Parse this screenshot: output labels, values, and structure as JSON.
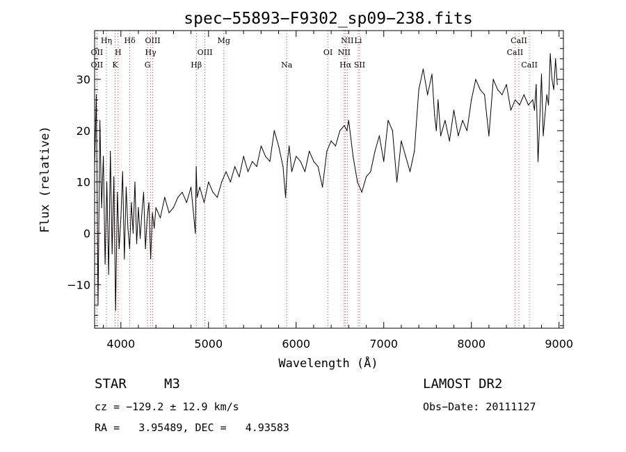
{
  "chart_data": {
    "type": "line",
    "title": "spec−55893−F9302_sp09−238.fits",
    "xlabel": "Wavelength (Å)",
    "ylabel": "Flux (relative)",
    "xlim": [
      3700,
      9050
    ],
    "ylim": [
      -18.5,
      39.5
    ],
    "x_ticks": [
      4000,
      5000,
      6000,
      7000,
      8000,
      9000
    ],
    "y_ticks": [
      -10,
      0,
      10,
      20,
      30
    ],
    "x_tick_labels": [
      "4000",
      "5000",
      "6000",
      "7000",
      "8000",
      "9000"
    ],
    "y_tick_labels": [
      "−10",
      "0",
      "10",
      "20",
      "30"
    ],
    "series": [
      {
        "name": "flux",
        "x": [
          3700,
          3720,
          3740,
          3760,
          3780,
          3800,
          3820,
          3840,
          3860,
          3880,
          3900,
          3920,
          3940,
          3960,
          3980,
          4000,
          4020,
          4040,
          4060,
          4080,
          4100,
          4120,
          4140,
          4160,
          4180,
          4200,
          4220,
          4240,
          4260,
          4280,
          4300,
          4320,
          4340,
          4360,
          4380,
          4400,
          4450,
          4500,
          4550,
          4600,
          4650,
          4700,
          4750,
          4800,
          4850,
          4860,
          4870,
          4900,
          4950,
          5000,
          5050,
          5100,
          5150,
          5200,
          5250,
          5300,
          5350,
          5400,
          5450,
          5500,
          5550,
          5600,
          5650,
          5700,
          5750,
          5800,
          5850,
          5880,
          5900,
          5920,
          5950,
          6000,
          6050,
          6100,
          6150,
          6200,
          6250,
          6300,
          6350,
          6400,
          6450,
          6500,
          6550,
          6580,
          6600,
          6650,
          6700,
          6750,
          6800,
          6850,
          6900,
          6950,
          7000,
          7050,
          7100,
          7150,
          7200,
          7250,
          7300,
          7350,
          7400,
          7450,
          7500,
          7550,
          7580,
          7600,
          7620,
          7650,
          7700,
          7750,
          7800,
          7850,
          7900,
          7950,
          8000,
          8050,
          8100,
          8150,
          8200,
          8250,
          8300,
          8350,
          8400,
          8450,
          8500,
          8550,
          8600,
          8650,
          8700,
          8720,
          8740,
          8760,
          8780,
          8800,
          8820,
          8840,
          8860,
          8880,
          8900,
          8920,
          8940,
          8960,
          8980
        ],
        "y": [
          13,
          27,
          -14,
          22,
          5,
          15,
          -6,
          10,
          -8,
          16,
          -4,
          11,
          -15,
          8,
          -3,
          3,
          12,
          -5,
          9,
          1,
          -3,
          6,
          0,
          10,
          -2,
          5,
          -1,
          4,
          8,
          -3,
          3,
          6,
          -5,
          4,
          1,
          5,
          3,
          7,
          4,
          5,
          7,
          8,
          6,
          9,
          0,
          13,
          7,
          9,
          6,
          10,
          8,
          7,
          10,
          12,
          10,
          13,
          11,
          15,
          12,
          14,
          13,
          17,
          15,
          14,
          20,
          17,
          13,
          7,
          14,
          17,
          12,
          15,
          14,
          12,
          16,
          14,
          13,
          9,
          16,
          18,
          17,
          20,
          21,
          20,
          22,
          15,
          10,
          8,
          11,
          12,
          16,
          19,
          14,
          22,
          20,
          10,
          18,
          15,
          12,
          16,
          28,
          32,
          27,
          31,
          23,
          20,
          26,
          19,
          22,
          18,
          24,
          19,
          22,
          20,
          26,
          30,
          28,
          27,
          19,
          30,
          28,
          27,
          29,
          24,
          26,
          25,
          27,
          25,
          26,
          24,
          29,
          14,
          22,
          31,
          19,
          23,
          27,
          25,
          35,
          30,
          28,
          34,
          29
        ]
      }
    ],
    "lines": [
      {
        "label": "OII",
        "wavelength": 3727,
        "row": 2
      },
      {
        "label": "OII",
        "wavelength": 3727,
        "row": 3
      },
      {
        "label": "Hη",
        "wavelength": 3835,
        "row": 1
      },
      {
        "label": "H",
        "wavelength": 3968,
        "row": 2
      },
      {
        "label": "K",
        "wavelength": 3934,
        "row": 3
      },
      {
        "label": "Hδ",
        "wavelength": 4102,
        "row": 1
      },
      {
        "label": "OIII",
        "wavelength": 4363,
        "row": 1
      },
      {
        "label": "Hγ",
        "wavelength": 4340,
        "row": 2
      },
      {
        "label": "G",
        "wavelength": 4304,
        "row": 3
      },
      {
        "label": "Hβ",
        "wavelength": 4861,
        "row": 3
      },
      {
        "label": "OIII",
        "wavelength": 4959,
        "row": 2
      },
      {
        "label": "Mg",
        "wavelength": 5175,
        "row": 1
      },
      {
        "label": "Na",
        "wavelength": 5893,
        "row": 3
      },
      {
        "label": "OI",
        "wavelength": 6364,
        "row": 2
      },
      {
        "label": "NII",
        "wavelength": 6584,
        "row": 1
      },
      {
        "label": "NII",
        "wavelength": 6548,
        "row": 2
      },
      {
        "label": "Hα",
        "wavelength": 6563,
        "row": 3
      },
      {
        "label": "Li",
        "wavelength": 6708,
        "row": 1
      },
      {
        "label": "SII",
        "wavelength": 6724,
        "row": 3
      },
      {
        "label": "CaII",
        "wavelength": 8542,
        "row": 1
      },
      {
        "label": "CaII",
        "wavelength": 8498,
        "row": 2
      },
      {
        "label": "CaII",
        "wavelength": 8662,
        "row": 3
      }
    ]
  },
  "info": {
    "object_class": "STAR",
    "subclass": "M3",
    "survey": "LAMOST DR2",
    "cz_line": "cz = −129.2 ± 12.9 km/s",
    "obs_date_line": "Obs−Date: 20111127",
    "radec_line": "RA =   3.95489, DEC =   4.93583"
  }
}
